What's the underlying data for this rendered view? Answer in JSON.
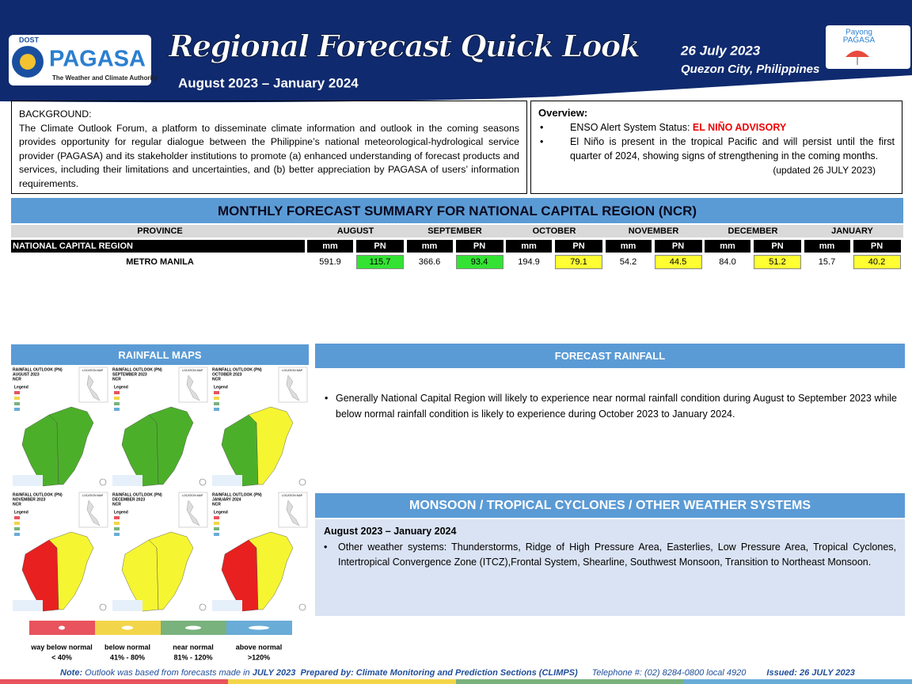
{
  "header": {
    "logo_small": "DOST",
    "logo": "PAGASA",
    "logo_tagline": "The Weather and Climate Authority",
    "title": "Regional Forecast Quick Look",
    "period": "August 2023 – January 2024",
    "date": "26 July 2023",
    "location": "Quezon City, Philippines",
    "badge_top": "Payong",
    "badge_bottom": "PAGASA"
  },
  "background": {
    "label": "BACKGROUND:",
    "text": "The Climate Outlook Forum, a platform to disseminate climate information and outlook in the coming seasons provides opportunity for regular dialogue between the Philippine’s national meteorological-hydrological service provider (PAGASA) and its stakeholder institutions to promote (a) enhanced understanding of forecast products and services, including their limitations and uncertainties, and (b) better appreciation by PAGASA of users’ information requirements."
  },
  "overview": {
    "label": "Overview:",
    "status_prefix": "ENSO Alert System Status: ",
    "status": "EL NIÑO ADVISORY",
    "item": "El Niño is present in the tropical Pacific and will persist until the first quarter of 2024, showing signs of strengthening in the coming months.",
    "updated": "(updated 26 JULY 2023)"
  },
  "table": {
    "title": "MONTHLY FORECAST SUMMARY FOR NATIONAL CAPITAL REGION (NCR)",
    "province_header": "PROVINCE",
    "mm_header": "mm",
    "pn_header": "PN",
    "region": "NATIONAL CAPITAL REGION",
    "province": "METRO MANILA",
    "months": [
      {
        "month": "AUGUST",
        "mm": "591.9",
        "pn": "115.7",
        "pn_color": "#33e233"
      },
      {
        "month": "SEPTEMBER",
        "mm": "366.6",
        "pn": "93.4",
        "pn_color": "#33e233"
      },
      {
        "month": "OCTOBER",
        "mm": "194.9",
        "pn": "79.1",
        "pn_color": "#ffff33"
      },
      {
        "month": "NOVEMBER",
        "mm": "54.2",
        "pn": "44.5",
        "pn_color": "#ffff33"
      },
      {
        "month": "DECEMBER",
        "mm": "84.0",
        "pn": "51.2",
        "pn_color": "#ffff33"
      },
      {
        "month": "JANUARY",
        "mm": "15.7",
        "pn": "40.2",
        "pn_color": "#ffff33"
      }
    ]
  },
  "rainfall_maps": {
    "title": "RAINFALL MAPS",
    "maps": [
      {
        "heading": "RAINFALL OUTLOOK (PN)",
        "month": "AUGUST 2023",
        "region": "NCR",
        "legend": "Legend",
        "location": "LOCATION MAP",
        "colors": [
          "#4caf2a",
          "#4caf2a"
        ]
      },
      {
        "heading": "RAINFALL OUTLOOK (PN)",
        "month": "SEPTEMBER 2023",
        "region": "NCR",
        "legend": "Legend",
        "location": "LOCATION MAP",
        "colors": [
          "#4caf2a",
          "#4caf2a"
        ]
      },
      {
        "heading": "RAINFALL OUTLOOK (PN)",
        "month": "OCTOBER 2023",
        "region": "NCR",
        "legend": "Legend",
        "location": "LOCATION MAP",
        "colors": [
          "#4caf2a",
          "#f5f532"
        ]
      },
      {
        "heading": "RAINFALL OUTLOOK (PN)",
        "month": "NOVEMBER 2023",
        "region": "NCR",
        "legend": "Legend",
        "location": "LOCATION MAP",
        "colors": [
          "#e82020",
          "#f5f532"
        ]
      },
      {
        "heading": "RAINFALL OUTLOOK (PN)",
        "month": "DECEMBER 2023",
        "region": "NCR",
        "legend": "Legend",
        "location": "LOCATION MAP",
        "colors": [
          "#f5f532",
          "#f5f532"
        ]
      },
      {
        "heading": "RAINFALL OUTLOOK (PN)",
        "month": "JANUARY 2024",
        "region": "NCR",
        "legend": "Legend",
        "location": "LOCATION MAP",
        "colors": [
          "#e82020",
          "#f5f532"
        ]
      }
    ],
    "legend": [
      {
        "label": "way below normal",
        "range": "< 40%",
        "color": "#e8535d"
      },
      {
        "label": "below normal",
        "range": "41% - 80%",
        "color": "#f3d54a"
      },
      {
        "label": "near normal",
        "range": "81% - 120%",
        "color": "#79b27d"
      },
      {
        "label": "above normal",
        "range": ">120%",
        "color": "#69acd8"
      }
    ]
  },
  "forecast_rainfall": {
    "title": "FORECAST RAINFALL",
    "text": "Generally National Capital Region will likely to experience near normal rainfall condition during August to September 2023 while below normal rainfall condition is likely to experience during October 2023 to January 2024."
  },
  "weather_systems": {
    "title": "MONSOON / TROPICAL CYCLONES / OTHER WEATHER SYSTEMS",
    "period": "August 2023 – January 2024",
    "text": "Other weather systems: Thunderstorms,  Ridge of High Pressure Area,  Easterlies, Low Pressure Area, Tropical Cyclones, Intertropical Convergence Zone (ITCZ),Frontal System, Shearline, Southwest Monsoon, Transition to Northeast Monsoon."
  },
  "footer": {
    "note_label": "Note:",
    "note": " Outlook was based from forecasts made in ",
    "note_month": "JULY 2023",
    "prepared": "Prepared by: Climate Monitoring and Prediction Sections (CLIMPS)",
    "telephone": "Telephone #: (02) 8284-0800 local 4920",
    "issued": "Issued: 26 JULY 2023"
  }
}
